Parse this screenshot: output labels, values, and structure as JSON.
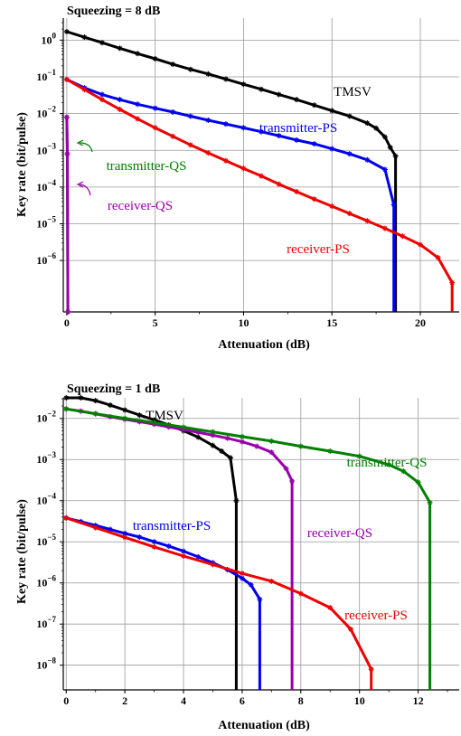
{
  "chart_data": [
    {
      "type": "line",
      "title": "Squeezing = 8 dB",
      "xlabel": "Attenuation (dB)",
      "ylabel": "Key rate (bit/pulse)",
      "xlim": [
        -0.2,
        22.2
      ],
      "ylim_exp": [
        -7.4,
        0.6
      ],
      "yscale": "log",
      "grid": true,
      "xticks": [
        0,
        5,
        10,
        15,
        20
      ],
      "ytick_exps": [
        -6,
        -5,
        -4,
        -3,
        -2,
        -1,
        0
      ],
      "series": [
        {
          "name": "TMSV",
          "color": "#000000",
          "x": [
            0,
            1,
            2,
            3,
            4,
            5,
            6,
            7,
            8,
            9,
            10,
            11,
            12,
            13,
            14,
            15,
            16,
            17,
            17.5,
            18,
            18.3,
            18.6
          ],
          "y": [
            1.7,
            1.2,
            0.85,
            0.6,
            0.43,
            0.31,
            0.22,
            0.16,
            0.12,
            0.087,
            0.063,
            0.046,
            0.033,
            0.024,
            0.017,
            0.012,
            0.0085,
            0.0055,
            0.004,
            0.0023,
            0.0012,
            0.0007
          ]
        },
        {
          "name": "transmitter-PS",
          "color": "#0000ee",
          "x": [
            0,
            1,
            2,
            3,
            4,
            5,
            6,
            7,
            8,
            9,
            10,
            11,
            12,
            13,
            14,
            15,
            16,
            17,
            18,
            18.5
          ],
          "y": [
            0.085,
            0.05,
            0.033,
            0.024,
            0.018,
            0.014,
            0.011,
            0.0085,
            0.0066,
            0.0052,
            0.0041,
            0.0032,
            0.0025,
            0.0019,
            0.0015,
            0.0011,
            0.0008,
            0.00055,
            0.0003,
            3.3e-05
          ]
        },
        {
          "name": "receiver-PS",
          "color": "#ee0000",
          "x": [
            0,
            1,
            2,
            3,
            4,
            5,
            6,
            7,
            8,
            9,
            10,
            11,
            12,
            13,
            14,
            15,
            16,
            17,
            18,
            19,
            20,
            21,
            21.8
          ],
          "y": [
            0.085,
            0.045,
            0.024,
            0.013,
            0.0072,
            0.0041,
            0.0024,
            0.0014,
            0.00085,
            0.00052,
            0.00032,
            0.0002,
            0.00012,
            7.5e-05,
            4.7e-05,
            3e-05,
            1.9e-05,
            1.2e-05,
            7.5e-06,
            4.6e-06,
            2.7e-06,
            1.2e-06,
            2.5e-07
          ]
        },
        {
          "name": "transmitter-QS",
          "color": "#008000",
          "x": [
            0,
            0.03,
            0.06
          ],
          "y": [
            0.008,
            0.0008,
            4e-08
          ]
        },
        {
          "name": "receiver-QS",
          "color": "#9900aa",
          "x": [
            0,
            0.03,
            0.06
          ],
          "y": [
            0.008,
            0.0008,
            4e-08
          ]
        }
      ],
      "annotations": [
        {
          "text": "TMSV",
          "color": "#000000"
        },
        {
          "text": "transmitter-PS",
          "color": "#0000ee"
        },
        {
          "text": "transmitter-QS",
          "color": "#008000"
        },
        {
          "text": "receiver-QS",
          "color": "#9900aa"
        },
        {
          "text": "receiver-PS",
          "color": "#ee0000"
        }
      ]
    },
    {
      "type": "line",
      "title": "Squeezing = 1 dB",
      "xlabel": "Attenuation (dB)",
      "ylabel": "Key rate (bit/pulse)",
      "xlim": [
        -0.1,
        13.4
      ],
      "ylim_exp": [
        -8.6,
        -1.5
      ],
      "yscale": "log",
      "grid": true,
      "xticks": [
        0,
        2,
        4,
        6,
        8,
        10,
        12
      ],
      "ytick_exps": [
        -8,
        -7,
        -6,
        -5,
        -4,
        -3,
        -2
      ],
      "series": [
        {
          "name": "TMSV",
          "color": "#000000",
          "x": [
            0,
            0.5,
            1,
            1.5,
            2,
            2.5,
            3,
            3.5,
            4,
            4.5,
            5,
            5.3,
            5.6,
            5.8
          ],
          "y": [
            0.04,
            0.033,
            0.027,
            0.021,
            0.016,
            0.012,
            0.0092,
            0.0069,
            0.005,
            0.0035,
            0.0022,
            0.0016,
            0.0011,
            0.0001
          ]
        },
        {
          "name": "receiver-QS",
          "color": "#9900aa",
          "x": [
            0,
            0.5,
            1,
            1.5,
            2,
            2.5,
            3,
            3.5,
            4,
            4.5,
            5,
            5.5,
            6,
            6.5,
            7,
            7.5,
            7.7
          ],
          "y": [
            0.017,
            0.015,
            0.013,
            0.011,
            0.0095,
            0.0083,
            0.0072,
            0.0062,
            0.0053,
            0.0046,
            0.0039,
            0.0033,
            0.0027,
            0.0021,
            0.0015,
            0.0006,
            0.0003
          ]
        },
        {
          "name": "transmitter-QS",
          "color": "#008000",
          "x": [
            0,
            1,
            2,
            3,
            4,
            5,
            6,
            7,
            8,
            9,
            10,
            11,
            11.5,
            12,
            12.4
          ],
          "y": [
            0.017,
            0.013,
            0.01,
            0.0079,
            0.0061,
            0.0047,
            0.0036,
            0.0028,
            0.0021,
            0.0016,
            0.0012,
            0.00075,
            0.00052,
            0.00028,
            9e-05
          ]
        },
        {
          "name": "transmitter-PS",
          "color": "#0000ee",
          "x": [
            0,
            0.5,
            1,
            1.5,
            2,
            2.5,
            3,
            3.5,
            4,
            4.5,
            5,
            5.5,
            6,
            6.3,
            6.6
          ],
          "y": [
            3.8e-05,
            3.1e-05,
            2.5e-05,
            2e-05,
            1.6e-05,
            1.3e-05,
            1e-05,
            7.8e-06,
            5.9e-06,
            4.3e-06,
            3.1e-06,
            2.1e-06,
            1.3e-06,
            9e-07,
            4e-07
          ]
        },
        {
          "name": "receiver-PS",
          "color": "#ee0000",
          "x": [
            0,
            1,
            2,
            3,
            4,
            5,
            6,
            7,
            8,
            9,
            9.7,
            10.4
          ],
          "y": [
            3.8e-05,
            2.2e-05,
            1.28e-05,
            7.5e-06,
            4.5e-06,
            2.8e-06,
            1.7e-06,
            1.1e-06,
            5.5e-07,
            2.5e-07,
            7.5e-08,
            8e-09
          ]
        }
      ],
      "annotations": [
        {
          "text": "TMSV",
          "color": "#000000"
        },
        {
          "text": "transmitter-QS",
          "color": "#008000"
        },
        {
          "text": "transmitter-PS",
          "color": "#0000ee"
        },
        {
          "text": "receiver-QS",
          "color": "#9900aa"
        },
        {
          "text": "receiver-PS",
          "color": "#ee0000"
        }
      ]
    }
  ]
}
